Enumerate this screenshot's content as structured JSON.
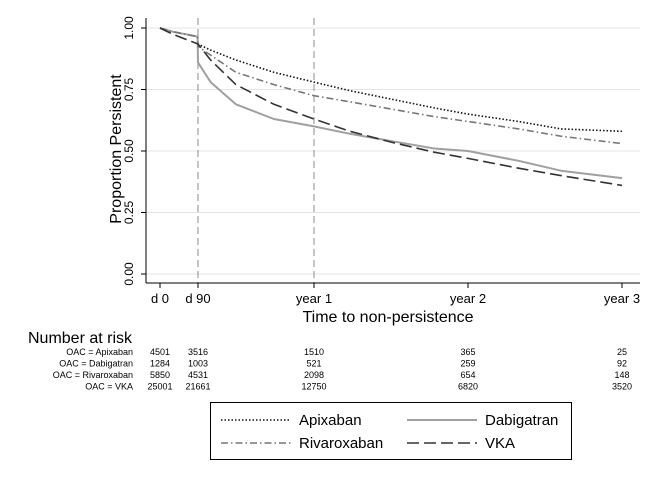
{
  "chart_data": {
    "type": "line",
    "title": "",
    "xlabel": "Time to non-persistence",
    "ylabel": "Proportion Persistent",
    "xlim": [
      0,
      1095
    ],
    "ylim": [
      0,
      1
    ],
    "x_ticks": [
      {
        "value": 0,
        "label": "d 0"
      },
      {
        "value": 90,
        "label": "d 90"
      },
      {
        "value": 365,
        "label": "year 1"
      },
      {
        "value": 730,
        "label": "year 2"
      },
      {
        "value": 1095,
        "label": "year 3"
      }
    ],
    "y_ticks": [
      {
        "value": 0,
        "label": "0.00"
      },
      {
        "value": 0.25,
        "label": "0.25"
      },
      {
        "value": 0.5,
        "label": "0.50"
      },
      {
        "value": 0.75,
        "label": "0.75"
      },
      {
        "value": 1,
        "label": "1.00"
      }
    ],
    "grid": "horizontal",
    "reference_lines_x": [
      90,
      365
    ],
    "legend_position": "bottom",
    "series": [
      {
        "name": "Apixaban",
        "dash": "1.5,2",
        "x": [
          0,
          30,
          60,
          89,
          90,
          120,
          180,
          270,
          365,
          450,
          550,
          650,
          730,
          850,
          950,
          1095
        ],
        "y": [
          1.0,
          0.985,
          0.975,
          0.965,
          0.935,
          0.91,
          0.87,
          0.82,
          0.78,
          0.745,
          0.71,
          0.675,
          0.65,
          0.62,
          0.59,
          0.58
        ]
      },
      {
        "name": "Dabigatran",
        "dash": "",
        "x": [
          0,
          30,
          60,
          89,
          90,
          120,
          180,
          270,
          365,
          450,
          550,
          650,
          730,
          850,
          950,
          1095
        ],
        "y": [
          1.0,
          0.985,
          0.975,
          0.965,
          0.86,
          0.78,
          0.69,
          0.63,
          0.6,
          0.57,
          0.54,
          0.51,
          0.5,
          0.46,
          0.42,
          0.39
        ]
      },
      {
        "name": "Rivaroxaban",
        "dash": "7,3,1.5,3",
        "x": [
          0,
          30,
          60,
          89,
          90,
          120,
          180,
          270,
          365,
          450,
          550,
          650,
          730,
          850,
          950,
          1095
        ],
        "y": [
          1.0,
          0.985,
          0.975,
          0.965,
          0.925,
          0.89,
          0.82,
          0.77,
          0.725,
          0.7,
          0.67,
          0.64,
          0.62,
          0.59,
          0.56,
          0.53
        ]
      },
      {
        "name": "VKA",
        "dash": "12,5",
        "x": [
          0,
          30,
          60,
          90,
          120,
          180,
          270,
          365,
          450,
          550,
          650,
          730,
          850,
          950,
          1095
        ],
        "y": [
          1.0,
          0.975,
          0.955,
          0.935,
          0.87,
          0.77,
          0.69,
          0.63,
          0.58,
          0.535,
          0.495,
          0.47,
          0.43,
          0.4,
          0.36
        ]
      }
    ]
  },
  "risk_table": {
    "title": "Number at risk",
    "columns_at": [
      0,
      90,
      365,
      730,
      1095
    ],
    "rows": [
      {
        "label": "OAC = Apixaban",
        "values": [
          "4501",
          "3516",
          "1510",
          "365",
          "25"
        ]
      },
      {
        "label": "OAC = Dabigatran",
        "values": [
          "1284",
          "1003",
          "521",
          "259",
          "92"
        ]
      },
      {
        "label": "OAC = Rivaroxaban",
        "values": [
          "5850",
          "4531",
          "2098",
          "654",
          "148"
        ]
      },
      {
        "label": "OAC = VKA",
        "values": [
          "25001",
          "21661",
          "12750",
          "6820",
          "3520"
        ]
      }
    ]
  },
  "colors": {
    "Apixaban": "#111111",
    "Dabigatran": "#a0a0a0",
    "Rivaroxaban": "#777777",
    "VKA": "#333333",
    "grid": "#e4e4e4",
    "reference": "#8c8c8c"
  }
}
